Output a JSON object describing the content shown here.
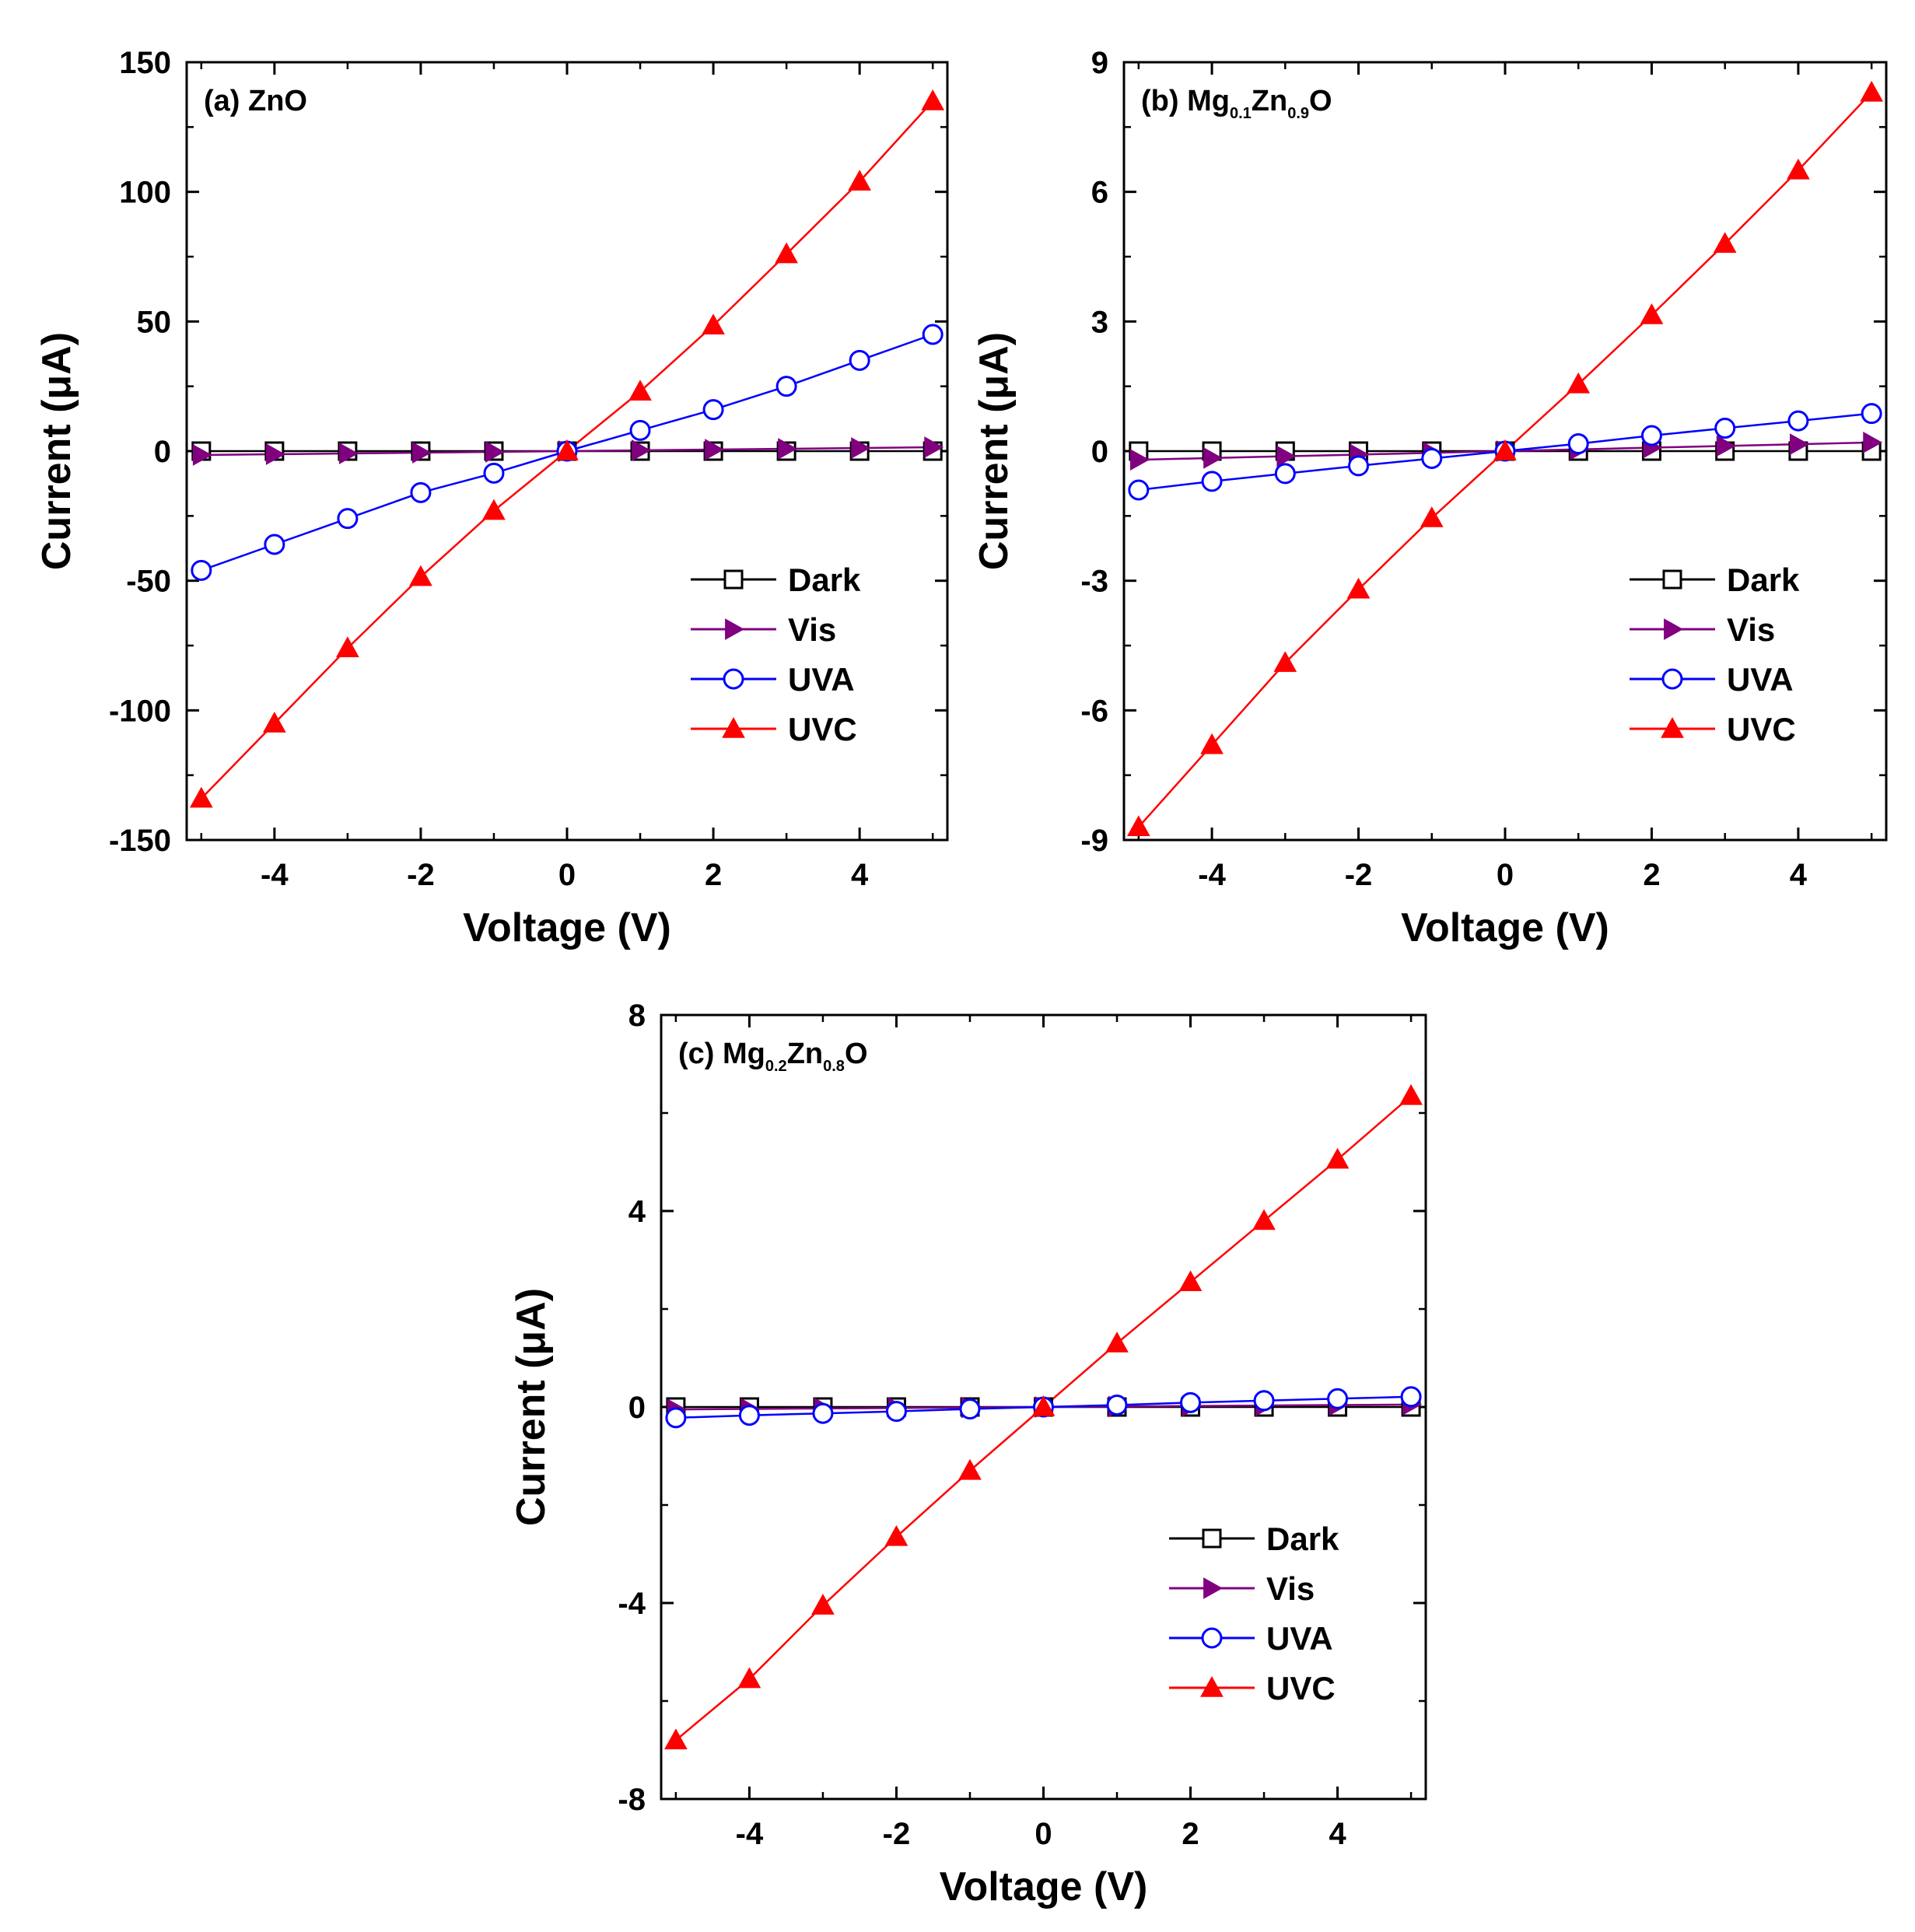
{
  "chart_data": [
    {
      "type": "line",
      "panel_label": "(a) ZnO",
      "label_parts": [
        {
          "text": "(a) ZnO",
          "sub": false
        }
      ],
      "xlabel": "Voltage (V)",
      "ylabel": "Current (μA)",
      "xlim": [
        -5.2,
        5.2
      ],
      "ylim": [
        -150,
        150
      ],
      "xticks": [
        -4,
        -2,
        0,
        2,
        4
      ],
      "yticks": [
        -150,
        -100,
        -50,
        0,
        50,
        100,
        150
      ],
      "x": [
        -5,
        -4,
        -3,
        -2,
        -1,
        0,
        1,
        2,
        3,
        4,
        5
      ],
      "series": [
        {
          "name": "Dark",
          "color": "#000000",
          "marker": "square",
          "values": [
            0,
            0,
            0,
            0,
            0,
            0,
            0,
            0,
            0,
            0,
            0
          ]
        },
        {
          "name": "Vis",
          "color": "#800080",
          "marker": "triangle-right",
          "values": [
            -1.5,
            -1.2,
            -0.9,
            -0.6,
            -0.3,
            0,
            0.3,
            0.6,
            0.9,
            1.2,
            1.5
          ]
        },
        {
          "name": "UVA",
          "color": "#0000ff",
          "marker": "circle",
          "values": [
            -46,
            -36,
            -26,
            -16,
            -8.5,
            0,
            8,
            16,
            25,
            35,
            45
          ]
        },
        {
          "name": "UVC",
          "color": "#ff0000",
          "marker": "triangle-up",
          "values": [
            -134,
            -105,
            -76,
            -48.5,
            -23,
            0,
            23,
            48.5,
            76,
            104,
            135
          ]
        }
      ],
      "legend": "bottom-right"
    },
    {
      "type": "line",
      "panel_label": "(b) Mg0.1Zn0.9O",
      "label_parts": [
        {
          "text": "(b) Mg",
          "sub": false
        },
        {
          "text": "0.1",
          "sub": true
        },
        {
          "text": "Zn",
          "sub": false
        },
        {
          "text": "0.9",
          "sub": true
        },
        {
          "text": "O",
          "sub": false
        }
      ],
      "xlabel": "Voltage (V)",
      "ylabel": "Current (μA)",
      "xlim": [
        -5.2,
        5.2
      ],
      "ylim": [
        -9,
        9
      ],
      "xticks": [
        -4,
        -2,
        0,
        2,
        4
      ],
      "yticks": [
        -9,
        -6,
        -3,
        0,
        3,
        6,
        9
      ],
      "x": [
        -5,
        -4,
        -3,
        -2,
        -1,
        0,
        1,
        2,
        3,
        4,
        5
      ],
      "series": [
        {
          "name": "Dark",
          "color": "#000000",
          "marker": "square",
          "values": [
            0,
            0,
            0,
            0,
            0,
            0,
            0,
            0,
            0,
            0,
            0
          ]
        },
        {
          "name": "Vis",
          "color": "#800080",
          "marker": "triangle-right",
          "values": [
            -0.2,
            -0.16,
            -0.12,
            -0.08,
            -0.04,
            0,
            0.04,
            0.08,
            0.12,
            0.16,
            0.2
          ]
        },
        {
          "name": "UVA",
          "color": "#0000ff",
          "marker": "circle",
          "values": [
            -0.9,
            -0.7,
            -0.52,
            -0.34,
            -0.17,
            0,
            0.17,
            0.36,
            0.53,
            0.7,
            0.87
          ]
        },
        {
          "name": "UVC",
          "color": "#ff0000",
          "marker": "triangle-up",
          "values": [
            -8.7,
            -6.8,
            -4.9,
            -3.2,
            -1.55,
            0,
            1.55,
            3.15,
            4.8,
            6.5,
            8.3
          ]
        }
      ],
      "legend": "bottom-right"
    },
    {
      "type": "line",
      "panel_label": "(c) Mg0.2Zn0.8O",
      "label_parts": [
        {
          "text": "(c) Mg",
          "sub": false
        },
        {
          "text": "0.2",
          "sub": true
        },
        {
          "text": "Zn",
          "sub": false
        },
        {
          "text": "0.8",
          "sub": true
        },
        {
          "text": "O",
          "sub": false
        }
      ],
      "xlabel": "Voltage (V)",
      "ylabel": "Current (μA)",
      "xlim": [
        -5.2,
        5.2
      ],
      "ylim": [
        -8,
        8
      ],
      "xticks": [
        -4,
        -2,
        0,
        2,
        4
      ],
      "yticks": [
        -8,
        -4,
        0,
        4,
        8
      ],
      "x": [
        -5,
        -4,
        -3,
        -2,
        -1,
        0,
        1,
        2,
        3,
        4,
        5
      ],
      "series": [
        {
          "name": "Dark",
          "color": "#000000",
          "marker": "square",
          "values": [
            0,
            0,
            0,
            0,
            0,
            0,
            0,
            0,
            0,
            0,
            0
          ]
        },
        {
          "name": "Vis",
          "color": "#800080",
          "marker": "triangle-right",
          "values": [
            -0.05,
            -0.04,
            -0.03,
            -0.02,
            -0.01,
            0,
            0.01,
            0.02,
            0.03,
            0.04,
            0.05
          ]
        },
        {
          "name": "UVA",
          "color": "#0000ff",
          "marker": "circle",
          "values": [
            -0.22,
            -0.17,
            -0.13,
            -0.09,
            -0.04,
            0,
            0.04,
            0.09,
            0.13,
            0.17,
            0.21
          ]
        },
        {
          "name": "UVC",
          "color": "#ff0000",
          "marker": "triangle-up",
          "values": [
            -6.8,
            -5.55,
            -4.05,
            -2.65,
            -1.3,
            0,
            1.3,
            2.55,
            3.8,
            5.05,
            6.35
          ]
        }
      ],
      "legend": "bottom-right"
    }
  ]
}
